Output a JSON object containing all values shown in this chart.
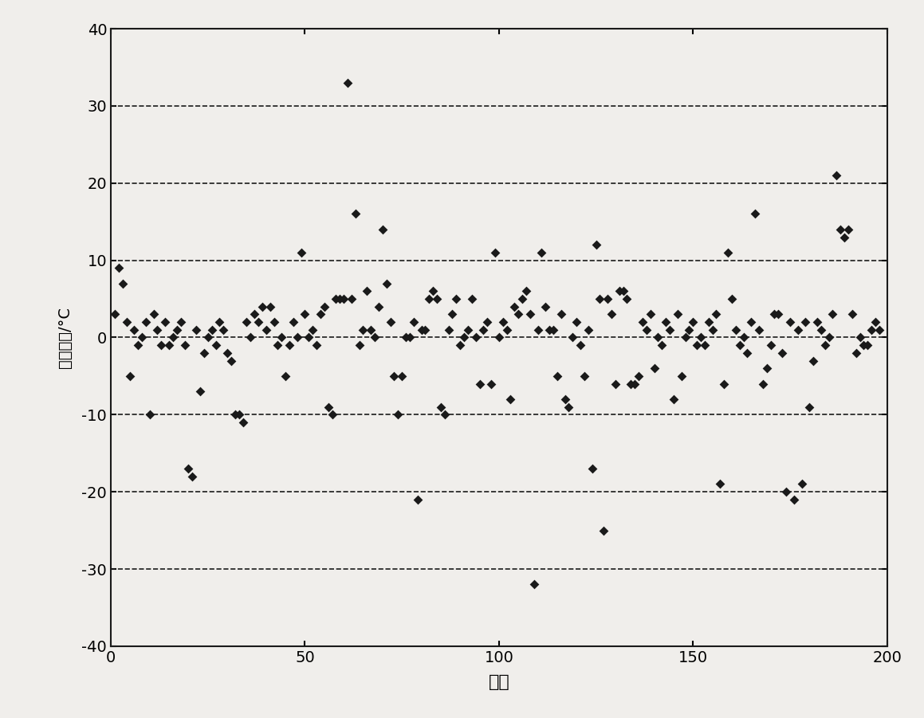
{
  "x_values": [
    1,
    2,
    3,
    4,
    5,
    6,
    7,
    8,
    9,
    10,
    11,
    12,
    13,
    14,
    15,
    16,
    17,
    18,
    19,
    20,
    21,
    22,
    23,
    24,
    25,
    26,
    27,
    28,
    29,
    30,
    31,
    32,
    33,
    34,
    35,
    36,
    37,
    38,
    39,
    40,
    41,
    42,
    43,
    44,
    45,
    46,
    47,
    48,
    49,
    50,
    51,
    52,
    53,
    54,
    55,
    56,
    57,
    58,
    59,
    60,
    61,
    62,
    63,
    64,
    65,
    66,
    67,
    68,
    69,
    70,
    71,
    72,
    73,
    74,
    75,
    76,
    77,
    78,
    79,
    80,
    81,
    82,
    83,
    84,
    85,
    86,
    87,
    88,
    89,
    90,
    91,
    92,
    93,
    94,
    95,
    96,
    97,
    98,
    99,
    100,
    101,
    102,
    103,
    104,
    105,
    106,
    107,
    108,
    109,
    110,
    111,
    112,
    113,
    114,
    115,
    116,
    117,
    118,
    119,
    120,
    121,
    122,
    123,
    124,
    125,
    126,
    127,
    128,
    129,
    130,
    131,
    132,
    133,
    134,
    135,
    136,
    137,
    138,
    139,
    140,
    141,
    142,
    143,
    144,
    145,
    146,
    147,
    148,
    149,
    150,
    151,
    152,
    153,
    154,
    155,
    156,
    157,
    158,
    159,
    160,
    161,
    162,
    163,
    164,
    165,
    166,
    167,
    168,
    169,
    170,
    171,
    172,
    173,
    174,
    175,
    176,
    177,
    178,
    179,
    180,
    181,
    182,
    183,
    184,
    185,
    186,
    187,
    188,
    189,
    190,
    191,
    192,
    193,
    194,
    195,
    196,
    197,
    198
  ],
  "y_values": [
    3,
    9,
    7,
    2,
    -5,
    1,
    -1,
    0,
    2,
    -10,
    3,
    1,
    -1,
    2,
    -1,
    0,
    1,
    2,
    -1,
    -17,
    -18,
    1,
    -7,
    -2,
    0,
    1,
    -1,
    2,
    1,
    -2,
    -3,
    -10,
    -10,
    -11,
    2,
    0,
    3,
    2,
    4,
    1,
    4,
    2,
    -1,
    0,
    -5,
    -1,
    2,
    0,
    11,
    3,
    0,
    1,
    -1,
    3,
    4,
    -9,
    -10,
    5,
    5,
    5,
    33,
    5,
    16,
    -1,
    1,
    6,
    1,
    0,
    4,
    14,
    7,
    2,
    -5,
    -10,
    -5,
    0,
    0,
    2,
    -21,
    1,
    1,
    5,
    6,
    5,
    -9,
    -10,
    1,
    3,
    5,
    -1,
    0,
    1,
    5,
    0,
    -6,
    1,
    2,
    -6,
    11,
    0,
    2,
    1,
    -8,
    4,
    3,
    5,
    6,
    3,
    -32,
    1,
    11,
    4,
    1,
    1,
    -5,
    3,
    -8,
    -9,
    0,
    2,
    -1,
    -5,
    1,
    -17,
    12,
    5,
    -25,
    5,
    3,
    -6,
    6,
    6,
    5,
    -6,
    -6,
    -5,
    2,
    1,
    3,
    -4,
    0,
    -1,
    2,
    1,
    -8,
    3,
    -5,
    0,
    1,
    2,
    -1,
    0,
    -1,
    2,
    1,
    3,
    -19,
    -6,
    11,
    5,
    1,
    -1,
    0,
    -2,
    2,
    16,
    1,
    -6,
    -4,
    -1,
    3,
    3,
    -2,
    -20,
    2,
    -21,
    1,
    -19,
    2,
    -9,
    -3,
    2,
    1,
    -1,
    0,
    3,
    21,
    14,
    13,
    14,
    3,
    -2,
    0,
    -1,
    -1,
    1,
    2,
    1
  ],
  "xlabel": "序号",
  "ylabel": "预报误差/°C",
  "xlim": [
    0,
    200
  ],
  "ylim": [
    -40,
    40
  ],
  "xticks": [
    0,
    50,
    100,
    150,
    200
  ],
  "yticks": [
    -40,
    -30,
    -20,
    -10,
    0,
    10,
    20,
    30,
    40
  ],
  "hlines": [
    -30,
    -20,
    -10,
    0,
    10,
    20,
    30
  ],
  "marker_color": "#1a1a1a",
  "marker_size": 6,
  "background_color": "#f0eeeb",
  "grid_linestyle": "--",
  "grid_color": "#1a1a1a",
  "grid_linewidth": 1.2,
  "spine_color": "#1a1a1a",
  "tick_labelsize": 14,
  "xlabel_fontsize": 16,
  "ylabel_fontsize": 14
}
